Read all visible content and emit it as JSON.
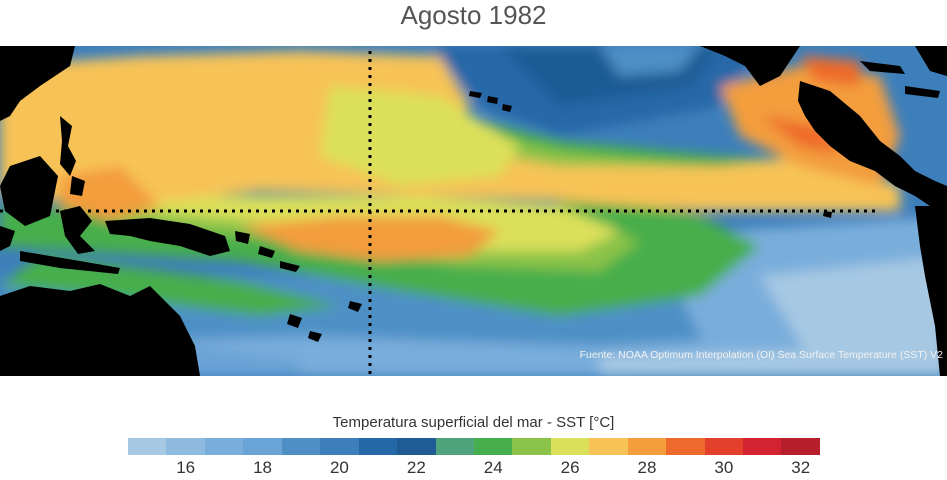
{
  "title": "Agosto 1982",
  "source": "Fuente: NOAA Optimum Interpolation (OI) Sea Surface Temperature (SST) V2",
  "colorbar": {
    "label": "Temperatura superficial del mar - SST  [°C]",
    "min": 15,
    "max": 33,
    "step": 1,
    "colors": [
      "#a6c8e3",
      "#8dbade",
      "#79addb",
      "#6aa3d5",
      "#4e90c6",
      "#3d7fbb",
      "#2568a8",
      "#1f5c96",
      "#4fa37d",
      "#46ae4c",
      "#8bc34a",
      "#dbe05a",
      "#f7c357",
      "#f39d3d",
      "#ee6a2c",
      "#e3402b",
      "#d42330",
      "#b81f2c"
    ],
    "tick_labels": [
      "16",
      "18",
      "20",
      "22",
      "24",
      "26",
      "28",
      "30",
      "32"
    ]
  },
  "map": {
    "region": "Pacífico tropical",
    "guide_lines": "dotted"
  }
}
